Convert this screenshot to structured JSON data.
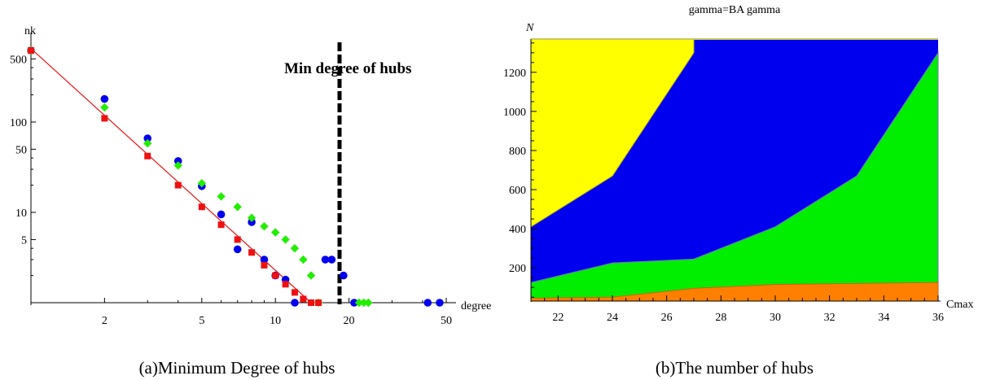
{
  "chart_data": [
    {
      "type": "scatter",
      "xscale": "log",
      "yscale": "log",
      "xlabel": "degree",
      "ylabel": "nk",
      "x_ticks": [
        "2",
        "5",
        "10",
        "20",
        "50"
      ],
      "y_ticks": [
        "5",
        "10",
        "50",
        "100",
        "500"
      ],
      "annotation": "Min degree of hubs",
      "threshold_degree": 18.3,
      "caption": "(a)Minimum Degree of hubs",
      "colors": {
        "blue": "#0000ee",
        "green": "#22ee00",
        "red": "#ee1111"
      },
      "series": [
        {
          "marker": "circle",
          "color": "#0000ee",
          "points": [
            [
              1,
              620
            ],
            [
              2,
              180
            ],
            [
              3,
              66
            ],
            [
              4,
              37
            ],
            [
              5,
              19.5
            ],
            [
              6,
              9.5
            ],
            [
              7,
              3.9
            ],
            [
              8,
              7.8
            ],
            [
              9,
              3
            ],
            [
              10,
              2
            ],
            [
              11,
              1.8
            ],
            [
              12,
              1
            ],
            [
              16,
              3
            ],
            [
              17,
              3
            ],
            [
              19,
              2
            ],
            [
              21,
              1
            ],
            [
              42,
              1
            ],
            [
              47,
              1
            ]
          ]
        },
        {
          "marker": "diamond",
          "color": "#22ee00",
          "points": [
            [
              1,
              620
            ],
            [
              2,
              145
            ],
            [
              3,
              58
            ],
            [
              4,
              33
            ],
            [
              5,
              21
            ],
            [
              6,
              15
            ],
            [
              7,
              11.5
            ],
            [
              8,
              8.7
            ],
            [
              9,
              7
            ],
            [
              10,
              6
            ],
            [
              11,
              5
            ],
            [
              12,
              4
            ],
            [
              13,
              3
            ],
            [
              14,
              2
            ],
            [
              15,
              1
            ],
            [
              22,
              1
            ],
            [
              23,
              1
            ],
            [
              24,
              1
            ]
          ]
        },
        {
          "marker": "square",
          "color": "#ee1111",
          "points": [
            [
              1,
              620
            ],
            [
              2,
              110
            ],
            [
              3,
              42
            ],
            [
              4,
              20
            ],
            [
              5,
              11.5
            ],
            [
              6,
              7.3
            ],
            [
              7,
              5
            ],
            [
              8,
              3.6
            ],
            [
              9,
              2.6
            ],
            [
              10,
              2
            ],
            [
              11,
              1.6
            ],
            [
              12,
              1.3
            ],
            [
              13,
              1.1
            ],
            [
              14,
              1
            ],
            [
              15,
              1
            ]
          ],
          "fit_line": [
            [
              1,
              650
            ],
            [
              14,
              1
            ]
          ]
        }
      ]
    },
    {
      "type": "area",
      "title": "gamma=BA gamma",
      "xlabel": "Cmax",
      "ylabel": "N",
      "x_ticks": [
        "22",
        "24",
        "26",
        "28",
        "30",
        "32",
        "34",
        "36"
      ],
      "y_ticks": [
        "200",
        "400",
        "600",
        "800",
        "1000",
        "1200"
      ],
      "xlim": [
        21,
        36
      ],
      "ylim": [
        30,
        1370
      ],
      "caption": "(b)The number of hubs",
      "colors": {
        "yellow": "#ffff00",
        "blue": "#0000ee",
        "green": "#00ee00",
        "orange": "#ff7f00"
      },
      "boundaries": {
        "yellow_blue": [
          [
            21,
            410
          ],
          [
            24,
            670
          ],
          [
            27,
            1300
          ],
          [
            27,
            1370
          ]
        ],
        "blue_green": [
          [
            21,
            125
          ],
          [
            24,
            225
          ],
          [
            27,
            245
          ],
          [
            30,
            410
          ],
          [
            33,
            670
          ],
          [
            36,
            1300
          ]
        ],
        "green_orange": [
          [
            21,
            45
          ],
          [
            24,
            50
          ],
          [
            27,
            95
          ],
          [
            30,
            115
          ],
          [
            33,
            120
          ],
          [
            36,
            125
          ]
        ]
      }
    }
  ]
}
